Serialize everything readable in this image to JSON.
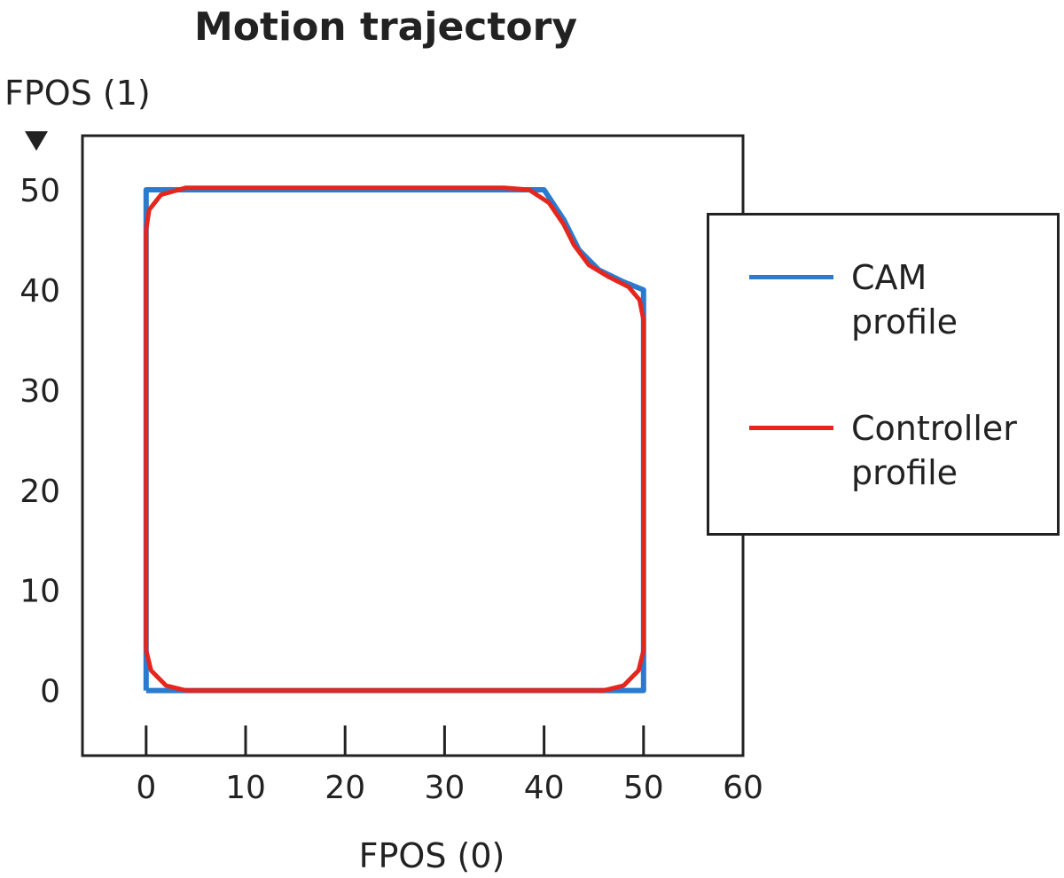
{
  "chart_data": {
    "type": "line",
    "title": "Motion trajectory",
    "x_label": "FPOS (0)",
    "y_label": "FPOS (1)",
    "xlim": [
      -6.4,
      60
    ],
    "ylim": [
      -6.5,
      55.4
    ],
    "xticks": [
      0,
      10,
      20,
      30,
      40,
      50,
      60
    ],
    "yticks": [
      0,
      10,
      20,
      30,
      40,
      50
    ],
    "legend": "right",
    "series": [
      {
        "name": "CAM profile",
        "color": "#2a7bd0",
        "x": [
          0,
          50,
          50,
          48,
          45.5,
          43.5,
          42,
          40,
          0,
          0
        ],
        "values": [
          0,
          0,
          40,
          40.8,
          42,
          44,
          47,
          50,
          50,
          0
        ]
      },
      {
        "name": "Controller profile",
        "color": "#e5261c",
        "x": [
          4,
          46,
          48,
          49.5,
          50,
          50,
          49.6,
          48.5,
          46.5,
          44.5,
          43,
          42,
          40.5,
          38.5,
          36,
          4,
          1.5,
          0.3,
          0,
          0,
          0.5,
          2,
          4
        ],
        "values": [
          0,
          0,
          0.5,
          2,
          4,
          37,
          39,
          40.3,
          41.3,
          42.5,
          44.5,
          46.5,
          48.7,
          50,
          50.2,
          50.2,
          49.5,
          48,
          46,
          4,
          2,
          0.5,
          0
        ]
      }
    ]
  }
}
